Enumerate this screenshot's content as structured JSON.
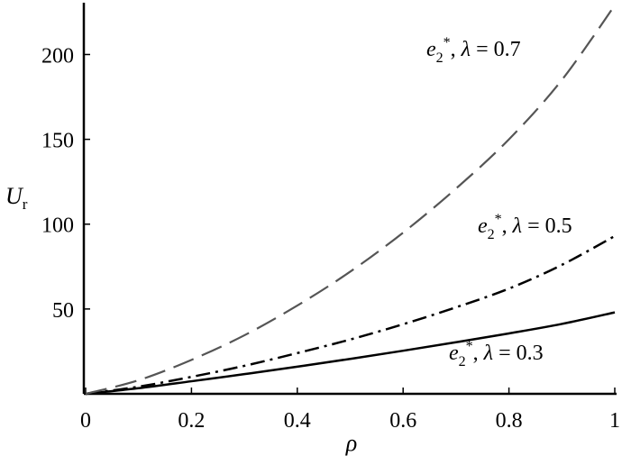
{
  "chart_data": {
    "type": "line",
    "title": "",
    "xlabel": "ρ",
    "ylabel": {
      "main": "U",
      "subscript": "r"
    },
    "xlim": [
      0,
      1
    ],
    "ylim": [
      0,
      230
    ],
    "xticks": [
      0,
      0.2,
      0.4,
      0.6,
      0.8,
      1
    ],
    "xtick_labels": [
      "0",
      "0.2",
      "0.4",
      "0.6",
      "0.8",
      "1"
    ],
    "yticks": [
      50,
      100,
      150,
      200
    ],
    "ytick_labels": [
      "50",
      "100",
      "150",
      "200"
    ],
    "grid": false,
    "x": [
      0,
      0.1,
      0.2,
      0.3,
      0.4,
      0.5,
      0.6,
      0.7,
      0.8,
      0.9,
      1.0
    ],
    "series": [
      {
        "label_var": "e",
        "label_sub": "2",
        "label_sup": "*",
        "label_param": "λ = 0.3",
        "style": "solid",
        "color": "#000000",
        "values": [
          0,
          3.3,
          7.4,
          11.6,
          16.0,
          20.6,
          25.4,
          30.4,
          35.6,
          41.2,
          48
        ]
      },
      {
        "label_var": "e",
        "label_sub": "2",
        "label_sup": "*",
        "label_param": "λ = 0.5",
        "style": "dashdot",
        "color": "#000000",
        "values": [
          0,
          4.2,
          10.0,
          16.5,
          24.0,
          32.0,
          41.0,
          51.0,
          62.0,
          76.0,
          93
        ]
      },
      {
        "label_var": "e",
        "label_sub": "2",
        "label_sup": "*",
        "label_param": "λ = 0.7",
        "style": "dashed",
        "color": "#555555",
        "values": [
          0,
          8.0,
          20.0,
          34.5,
          52.0,
          72.0,
          95.0,
          121.0,
          150.0,
          185.0,
          229
        ]
      }
    ]
  }
}
